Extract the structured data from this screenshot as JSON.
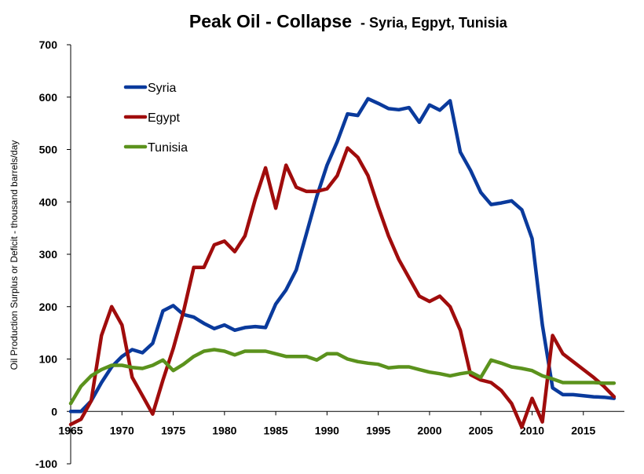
{
  "chart_data": {
    "type": "line",
    "title": "Peak Oil -  Collapse",
    "subtitle": "- Syria, Egpyt, Tunisia",
    "ylabel": "Oil Production Surplus or Deficit - thousand  barrels/day",
    "xlabel": "",
    "xlim": [
      1965,
      2019
    ],
    "ylim": [
      -100,
      700
    ],
    "xticks": [
      1965,
      1970,
      1975,
      1980,
      1985,
      1990,
      1995,
      2000,
      2005,
      2010,
      2015
    ],
    "yticks": [
      -100,
      0,
      100,
      200,
      300,
      400,
      500,
      600,
      700
    ],
    "grid": false,
    "legend_position": "top-left",
    "x": [
      1965,
      1966,
      1967,
      1968,
      1969,
      1970,
      1971,
      1972,
      1973,
      1974,
      1975,
      1976,
      1977,
      1978,
      1979,
      1980,
      1981,
      1982,
      1983,
      1984,
      1985,
      1986,
      1987,
      1988,
      1989,
      1990,
      1991,
      1992,
      1993,
      1994,
      1995,
      1996,
      1997,
      1998,
      1999,
      2000,
      2001,
      2002,
      2003,
      2004,
      2005,
      2006,
      2007,
      2008,
      2009,
      2010,
      2011,
      2012,
      2013,
      2014,
      2015,
      2016,
      2017,
      2018
    ],
    "series": [
      {
        "name": "Syria",
        "color": "#0a3a9c",
        "values": [
          0,
          0,
          20,
          55,
          85,
          105,
          118,
          112,
          130,
          192,
          202,
          185,
          180,
          168,
          158,
          165,
          155,
          160,
          162,
          160,
          205,
          232,
          270,
          340,
          410,
          470,
          515,
          568,
          565,
          597,
          588,
          578,
          576,
          580,
          552,
          585,
          575,
          593,
          495,
          460,
          418,
          395,
          398,
          402,
          385,
          330,
          165,
          45,
          32,
          32,
          30,
          28,
          27,
          25
        ]
      },
      {
        "name": "Egypt",
        "color": "#a00c0c",
        "values": [
          -25,
          -15,
          20,
          145,
          200,
          165,
          65,
          30,
          -5,
          60,
          120,
          190,
          275,
          275,
          318,
          325,
          305,
          335,
          405,
          465,
          388,
          470,
          428,
          420,
          420,
          425,
          450,
          503,
          485,
          450,
          390,
          335,
          290,
          255,
          220,
          210,
          220,
          200,
          155,
          70,
          60,
          55,
          40,
          15,
          -30,
          25,
          -20,
          145,
          110,
          95,
          80,
          65,
          48,
          28
        ]
      },
      {
        "name": "Tunisia",
        "color": "#5b921d",
        "values": [
          15,
          48,
          68,
          80,
          88,
          88,
          84,
          82,
          88,
          98,
          78,
          90,
          105,
          115,
          118,
          115,
          108,
          115,
          115,
          115,
          110,
          105,
          105,
          105,
          98,
          110,
          110,
          100,
          95,
          92,
          90,
          83,
          85,
          85,
          80,
          75,
          72,
          68,
          72,
          75,
          65,
          98,
          92,
          85,
          82,
          78,
          68,
          62,
          55,
          55,
          55,
          55,
          54,
          54
        ]
      }
    ]
  }
}
